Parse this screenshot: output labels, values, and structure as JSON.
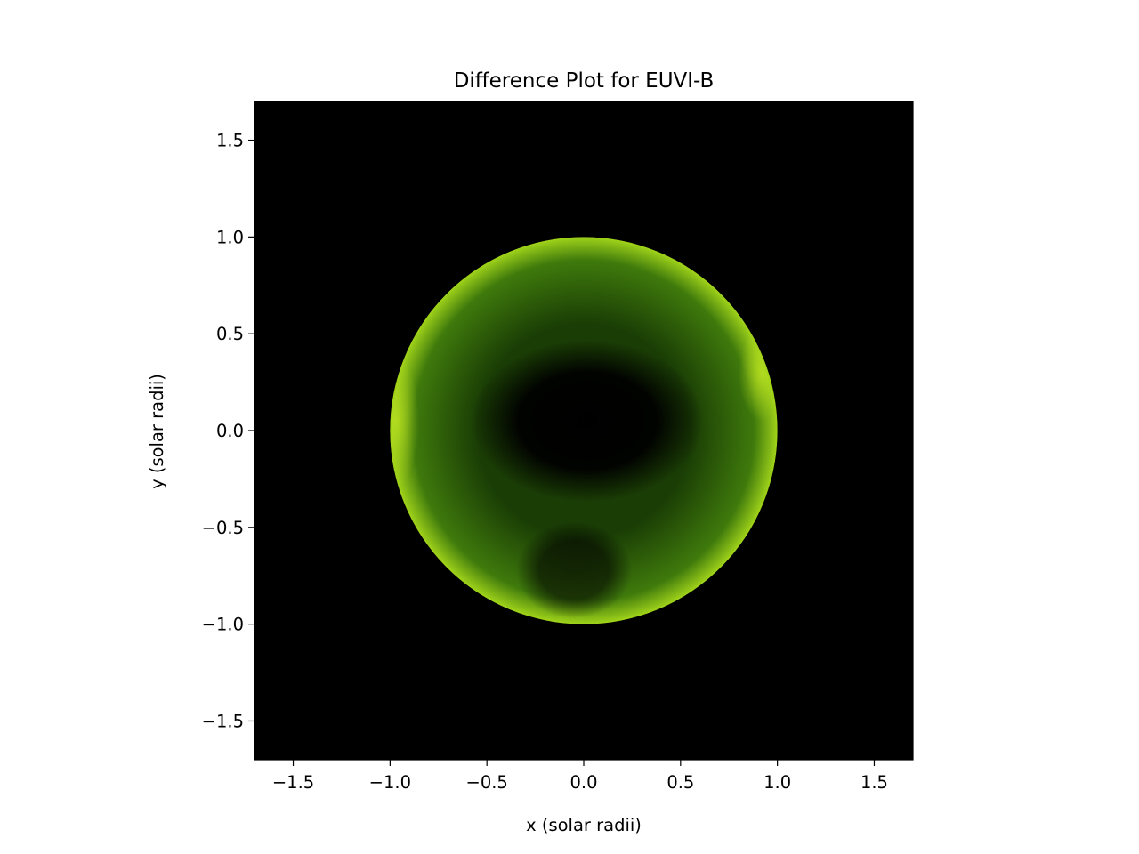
{
  "chart_data": {
    "type": "heatmap",
    "title": "Difference Plot for EUVI-B",
    "xlabel": "x (solar radii)",
    "ylabel": "y (solar radii)",
    "xlim": [
      -1.7,
      1.7
    ],
    "ylim": [
      -1.7,
      1.7
    ],
    "grid": false,
    "x_ticks": [
      -1.5,
      -1.0,
      -0.5,
      0.0,
      0.5,
      1.0,
      1.5
    ],
    "y_ticks": [
      -1.5,
      -1.0,
      -0.5,
      0.0,
      0.5,
      1.0,
      1.5
    ],
    "x_tick_labels": [
      "−1.5",
      "−1.0",
      "−0.5",
      "0.0",
      "0.5",
      "1.0",
      "1.5"
    ],
    "y_tick_labels": [
      "−1.5",
      "−1.0",
      "−0.5",
      "0.0",
      "0.5",
      "1.0",
      "1.5"
    ],
    "disk": {
      "center": [
        0.0,
        0.0
      ],
      "radius": 1.0
    },
    "colors": {
      "background": "#000000",
      "disk_edge": "#9fd21a",
      "disk_mid": "#3f7a0c",
      "disk_dark": "#1a3d05",
      "core": "#000000"
    }
  }
}
